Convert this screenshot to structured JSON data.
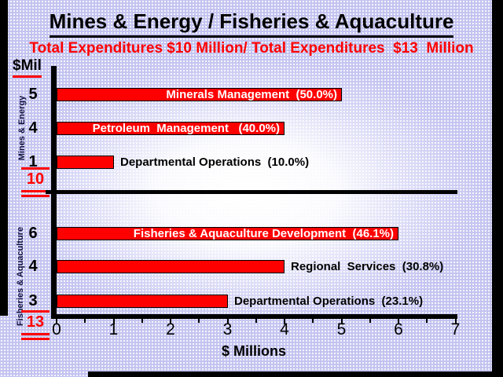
{
  "slide": {
    "title": "Mines & Energy / Fisheries & Aquaculture",
    "subtitle": "Total Expenditures $10 Million/ Total Expenditures  $13  Million",
    "y_axis_unit_label": "$Mil",
    "x_axis_label": "$ Millions"
  },
  "colors": {
    "bar": "#ff0000",
    "subtitle": "#ff0000",
    "totals": "#ff0000",
    "title": "#000000",
    "background_edge": "#c2c2f0",
    "background_center": "#ffffff",
    "frame": "#000000"
  },
  "chart_data": {
    "type": "bar",
    "orientation": "horizontal",
    "title": "Mines & Energy / Fisheries & Aquaculture",
    "subtitle": "Total Expenditures $10 Million/ Total Expenditures  $13  Million",
    "xlabel": "$ Millions",
    "xlim": [
      0,
      7
    ],
    "x_ticks": [
      "0",
      "1",
      "2",
      "3",
      "4",
      "5",
      "6",
      "7"
    ],
    "grid": false,
    "bar_color": "#ff0000",
    "groups": [
      {
        "name": "Mines & Energy",
        "total_label": "10",
        "total_value_millions": 10,
        "bars": [
          {
            "value": 5,
            "label": "Minerals Management  (50.0%)",
            "percent": 50.0,
            "label_position": "inside"
          },
          {
            "value": 4,
            "label": "Petroleum  Management   (40.0%)",
            "percent": 40.0,
            "label_position": "inside"
          },
          {
            "value": 1,
            "label": "Departmental Operations  (10.0%)",
            "percent": 10.0,
            "label_position": "outside"
          }
        ]
      },
      {
        "name": "Fisheries & Aquaculture",
        "total_label": "13",
        "total_value_millions": 13,
        "bars": [
          {
            "value": 6,
            "label": "Fisheries & Aquaculture Development  (46.1%)",
            "percent": 46.1,
            "label_position": "inside"
          },
          {
            "value": 4,
            "label": "Regional  Services  (30.8%)",
            "percent": 30.8,
            "label_position": "outside"
          },
          {
            "value": 3,
            "label": "Departmental Operations  (23.1%)",
            "percent": 23.1,
            "label_position": "outside"
          }
        ]
      }
    ]
  }
}
